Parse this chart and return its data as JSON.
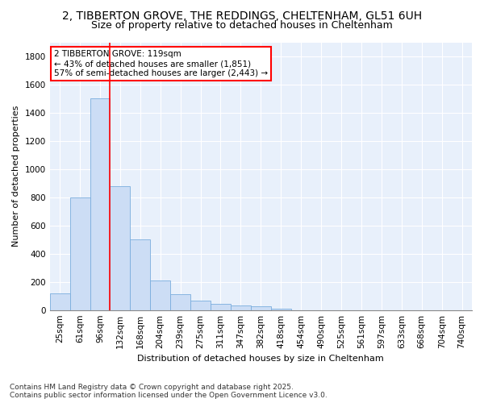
{
  "title_line1": "2, TIBBERTON GROVE, THE REDDINGS, CHELTENHAM, GL51 6UH",
  "title_line2": "Size of property relative to detached houses in Cheltenham",
  "xlabel": "Distribution of detached houses by size in Cheltenham",
  "ylabel": "Number of detached properties",
  "categories": [
    "25sqm",
    "61sqm",
    "96sqm",
    "132sqm",
    "168sqm",
    "204sqm",
    "239sqm",
    "275sqm",
    "311sqm",
    "347sqm",
    "382sqm",
    "418sqm",
    "454sqm",
    "490sqm",
    "525sqm",
    "561sqm",
    "597sqm",
    "633sqm",
    "668sqm",
    "704sqm",
    "740sqm"
  ],
  "values": [
    120,
    800,
    1500,
    880,
    500,
    210,
    110,
    65,
    45,
    32,
    25,
    10,
    0,
    0,
    0,
    0,
    0,
    0,
    0,
    0,
    0
  ],
  "bar_color": "#ccddf5",
  "bar_edge_color": "#7aaddd",
  "vline_color": "red",
  "vline_x_index": 2,
  "annotation_text": "2 TIBBERTON GROVE: 119sqm\n← 43% of detached houses are smaller (1,851)\n57% of semi-detached houses are larger (2,443) →",
  "annotation_box_color": "white",
  "annotation_box_edge": "red",
  "ylim": [
    0,
    1900
  ],
  "yticks": [
    0,
    200,
    400,
    600,
    800,
    1000,
    1200,
    1400,
    1600,
    1800
  ],
  "background_color": "#ffffff",
  "plot_bg_color": "#e8f0fb",
  "grid_color": "#ffffff",
  "footer_text": "Contains HM Land Registry data © Crown copyright and database right 2025.\nContains public sector information licensed under the Open Government Licence v3.0.",
  "title_fontsize": 10,
  "subtitle_fontsize": 9,
  "axis_label_fontsize": 8,
  "tick_fontsize": 7.5,
  "annotation_fontsize": 7.5,
  "footer_fontsize": 6.5
}
